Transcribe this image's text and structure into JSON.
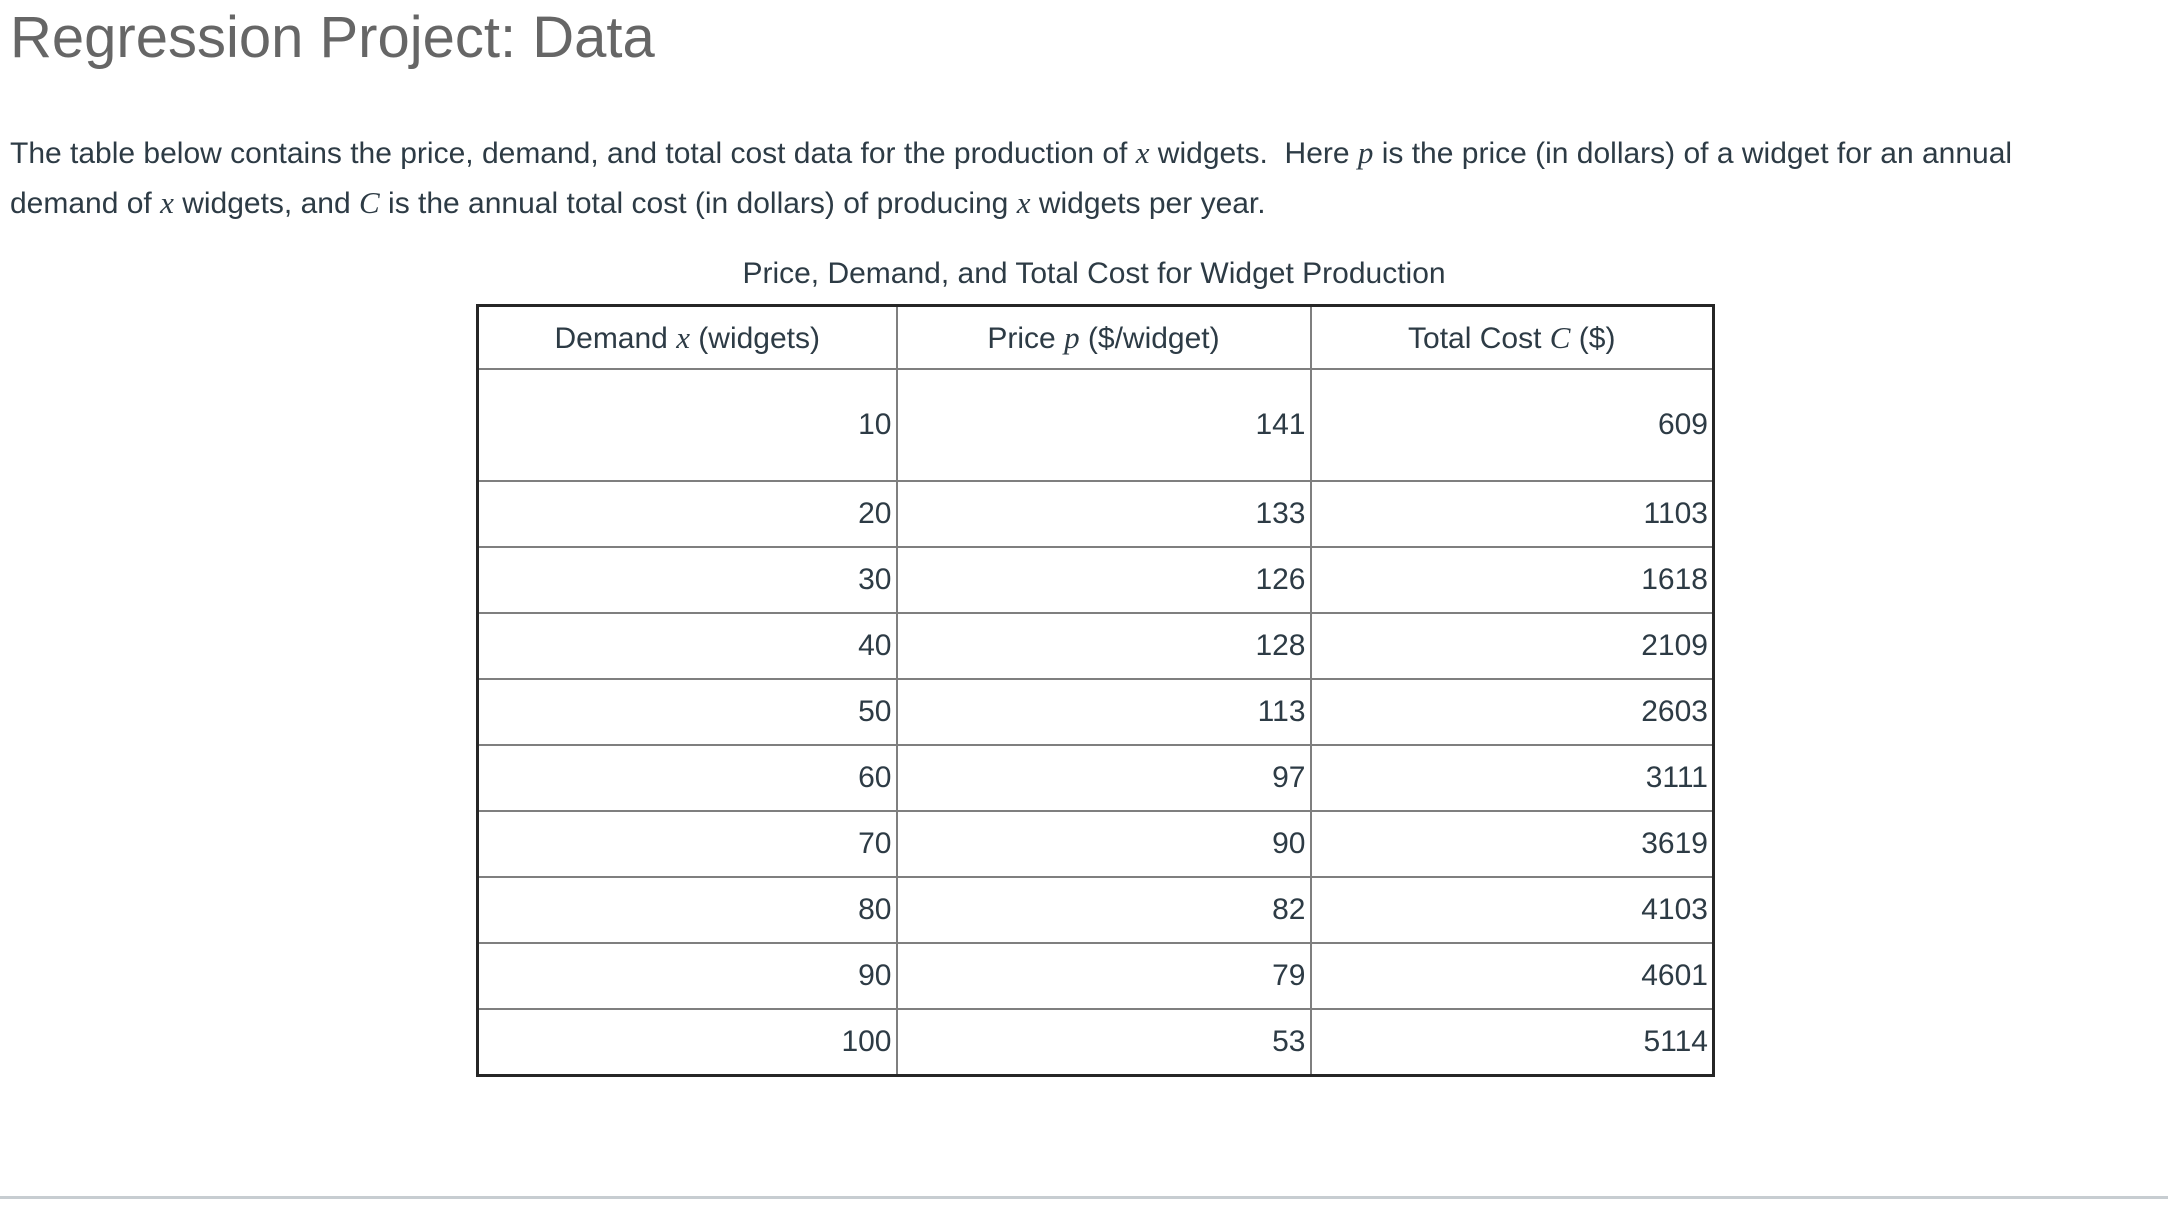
{
  "page": {
    "title": "Regression Project: Data"
  },
  "intro": {
    "line1": {
      "seg0": "The table below contains the price, demand, and total cost data for the production of ",
      "math0": "x",
      "seg1": " widgets.  Here ",
      "math1": "p",
      "seg2": " is the price (in dollars) of a widget for an annual"
    },
    "line2": {
      "seg0": "demand of ",
      "math0": "x",
      "seg1": " widgets, and ",
      "math1": "C",
      "seg2": " is the annual total cost (in dollars) of producing ",
      "math2": "x",
      "seg3": " widgets per year."
    }
  },
  "table": {
    "caption": "Price, Demand, and Total Cost for Widget Production",
    "headers": {
      "demand": {
        "pre": "Demand ",
        "math": "x",
        "post": " (widgets)"
      },
      "price": {
        "pre": "Price ",
        "math": "p",
        "post": " ($/widget)"
      },
      "cost": {
        "pre": "Total Cost ",
        "math": "C",
        "post": " ($)"
      }
    },
    "rows": [
      {
        "demand": "10",
        "price": "141",
        "cost": "609"
      },
      {
        "demand": "20",
        "price": "133",
        "cost": "1103"
      },
      {
        "demand": "30",
        "price": "126",
        "cost": "1618"
      },
      {
        "demand": "40",
        "price": "128",
        "cost": "2109"
      },
      {
        "demand": "50",
        "price": "113",
        "cost": "2603"
      },
      {
        "demand": "60",
        "price": "97",
        "cost": "3111"
      },
      {
        "demand": "70",
        "price": "90",
        "cost": "3619"
      },
      {
        "demand": "80",
        "price": "82",
        "cost": "4103"
      },
      {
        "demand": "90",
        "price": "79",
        "cost": "4601"
      },
      {
        "demand": "100",
        "price": "53",
        "cost": "5114"
      }
    ]
  },
  "chart_data": {
    "type": "table",
    "title": "Price, Demand, and Total Cost for Widget Production",
    "columns": [
      "Demand x (widgets)",
      "Price p ($/widget)",
      "Total Cost C ($)"
    ],
    "rows": [
      [
        10,
        141,
        609
      ],
      [
        20,
        133,
        1103
      ],
      [
        30,
        126,
        1618
      ],
      [
        40,
        128,
        2109
      ],
      [
        50,
        113,
        2603
      ],
      [
        60,
        97,
        3111
      ],
      [
        70,
        90,
        3619
      ],
      [
        80,
        82,
        4103
      ],
      [
        90,
        79,
        4601
      ],
      [
        100,
        53,
        5114
      ]
    ]
  },
  "colors": {
    "background": "#FFFFFF",
    "title_text": "#666666",
    "body_text": "#2D3B45",
    "table_outer_border": "#262626",
    "table_inner_border": "#7F7F7F",
    "bottom_divider": "#C7CDD1"
  }
}
